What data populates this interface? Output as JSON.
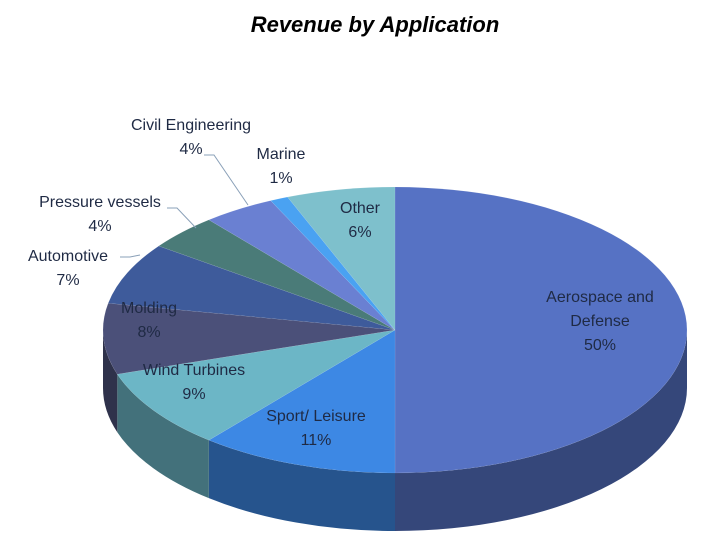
{
  "chart_data": {
    "type": "pie",
    "style": "3d",
    "title": "Revenue by Application",
    "slices": [
      {
        "label": "Aerospace and Defense",
        "value": 50,
        "pct": "50%",
        "color": "#5672c4"
      },
      {
        "label": "Sport/ Leisure",
        "value": 11,
        "pct": "11%",
        "color": "#3d88e4"
      },
      {
        "label": "Wind Turbines",
        "value": 9,
        "pct": "9%",
        "color": "#6cb6c6"
      },
      {
        "label": "Molding",
        "value": 8,
        "pct": "8%",
        "color": "#4b5079"
      },
      {
        "label": "Automotive",
        "value": 7,
        "pct": "7%",
        "color": "#3e5b9b"
      },
      {
        "label": "Pressure vessels",
        "value": 4,
        "pct": "4%",
        "color": "#4a7b78"
      },
      {
        "label": "Civil Engineering",
        "value": 4,
        "pct": "4%",
        "color": "#6a80d2"
      },
      {
        "label": "Marine",
        "value": 1,
        "pct": "1%",
        "color": "#4aa2f2"
      },
      {
        "label": "Other",
        "value": 6,
        "pct": "6%",
        "color": "#7ec0cc"
      }
    ],
    "legend": "none"
  }
}
